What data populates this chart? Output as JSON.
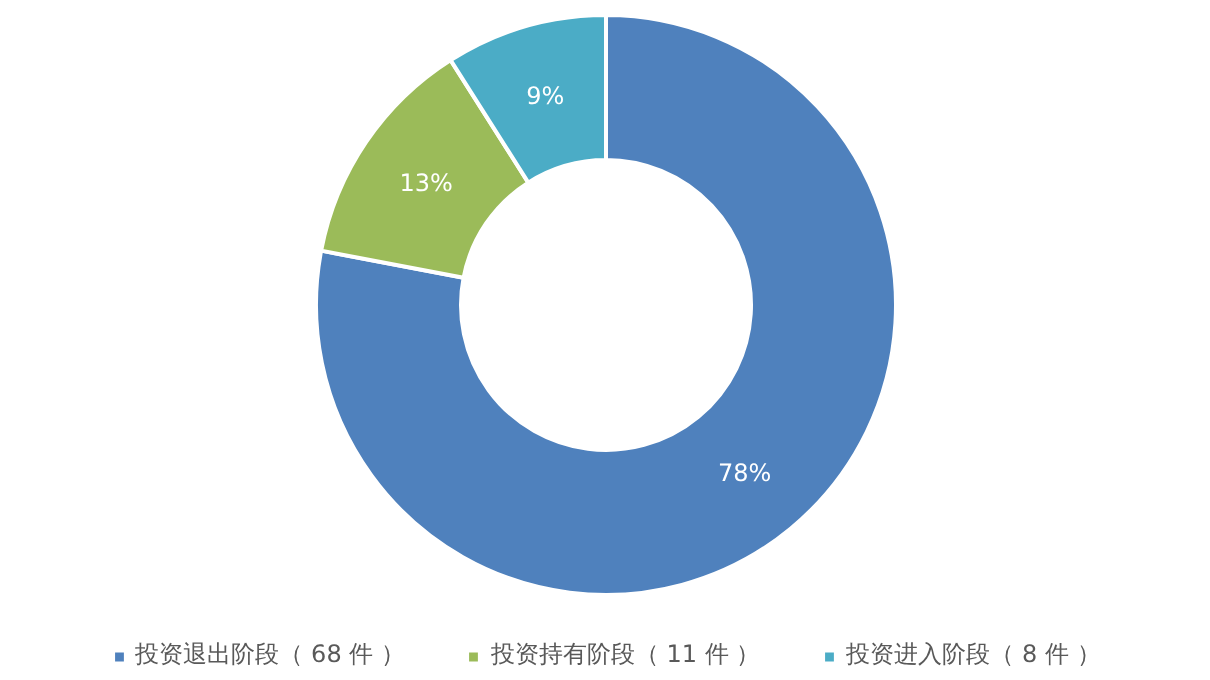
{
  "chart_data": {
    "type": "donut",
    "categories": [
      "投资退出阶段（ 68 件 ）",
      "投资持有阶段（ 11 件 ）",
      "投资进入阶段（ 8 件 ）"
    ],
    "values": [
      78,
      13,
      9
    ],
    "value_labels": [
      "78%",
      "13%",
      "9%"
    ],
    "colors": [
      "#4f81bd",
      "#9bbb59",
      "#4bacc6"
    ],
    "legend": "bottom"
  }
}
